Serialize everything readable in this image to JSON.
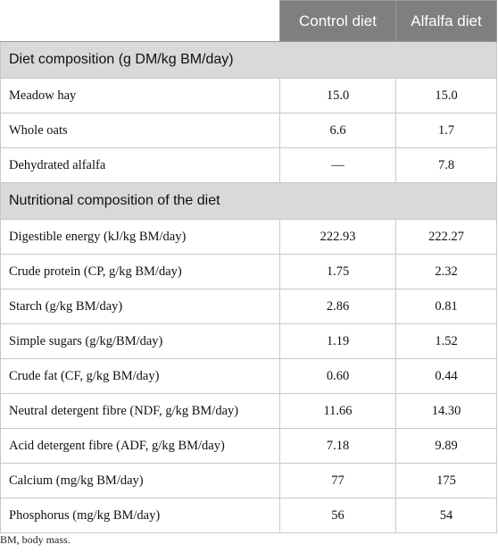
{
  "header": {
    "col2": "Control diet",
    "col3": "Alfalfa diet"
  },
  "sections": [
    {
      "title": "Diet composition (g DM/kg BM/day)",
      "rows": [
        {
          "label": "Meadow hay",
          "control": "15.0",
          "alfalfa": "15.0"
        },
        {
          "label": "Whole oats",
          "control": "6.6",
          "alfalfa": "1.7"
        },
        {
          "label": "Dehydrated alfalfa",
          "control": "—",
          "alfalfa": "7.8"
        }
      ]
    },
    {
      "title": "Nutritional composition of the diet",
      "rows": [
        {
          "label": "Digestible energy (kJ/kg BM/day)",
          "control": "222.93",
          "alfalfa": "222.27"
        },
        {
          "label": "Crude protein (CP, g/kg BM/day)",
          "control": "1.75",
          "alfalfa": "2.32"
        },
        {
          "label": "Starch (g/kg BM/day)",
          "control": "2.86",
          "alfalfa": "0.81"
        },
        {
          "label": "Simple sugars (g/kg/BM/day)",
          "control": "1.19",
          "alfalfa": "1.52"
        },
        {
          "label": "Crude fat (CF, g/kg BM/day)",
          "control": "0.60",
          "alfalfa": "0.44"
        },
        {
          "label": "Neutral detergent fibre (NDF, g/kg BM/day)",
          "control": "11.66",
          "alfalfa": "14.30"
        },
        {
          "label": "Acid detergent fibre (ADF, g/kg BM/day)",
          "control": "7.18",
          "alfalfa": "9.89"
        },
        {
          "label": "Calcium (mg/kg BM/day)",
          "control": "77",
          "alfalfa": "175"
        },
        {
          "label": "Phosphorus (mg/kg BM/day)",
          "control": "56",
          "alfalfa": "54"
        }
      ]
    }
  ],
  "footnote": "BM, body mass.",
  "colors": {
    "header_bg": "#7f7f7f",
    "section_bg": "#d9d9d9",
    "border": "#c8c8c8"
  }
}
